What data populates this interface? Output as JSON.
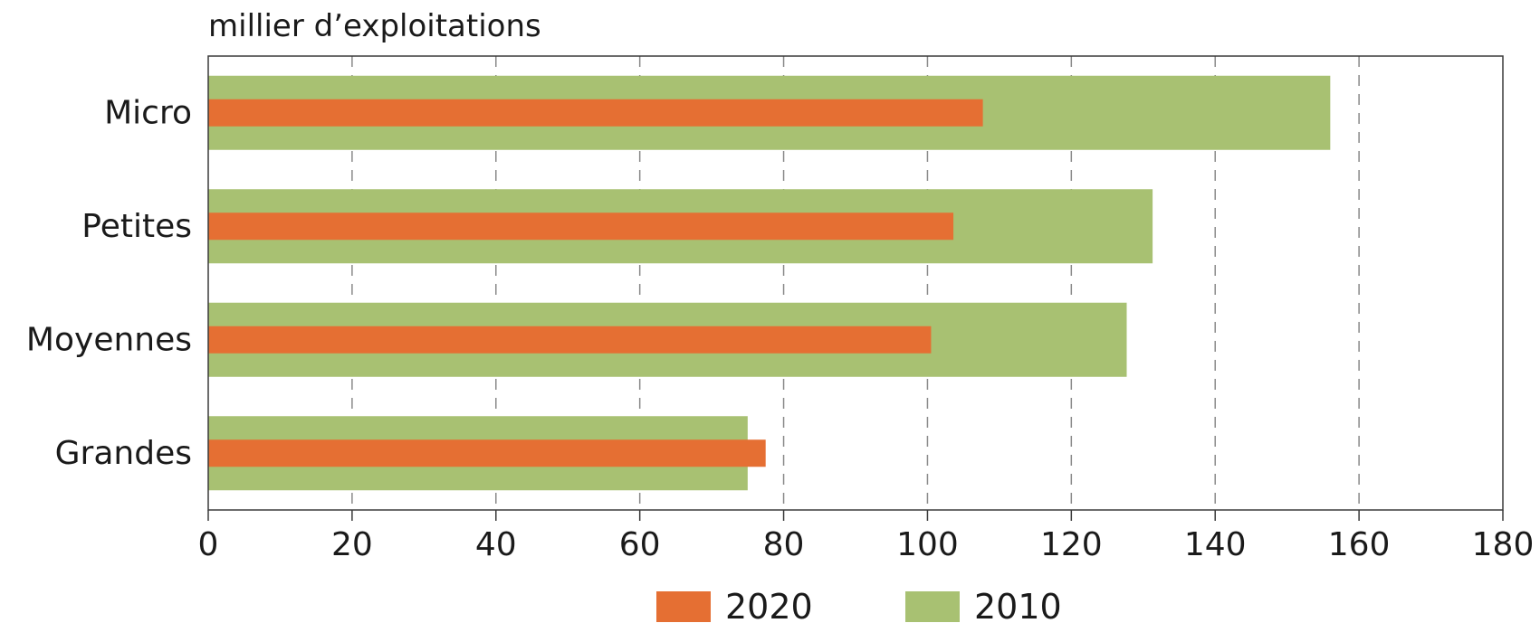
{
  "chart_data": {
    "type": "bar",
    "orientation": "horizontal",
    "unit_label": "millier d’exploitations",
    "categories": [
      "Micro",
      "Petites",
      "Moyennes",
      "Grandes"
    ],
    "series": [
      {
        "name": "2010",
        "values": [
          156,
          131.3,
          127.7,
          75
        ],
        "color": "#a8c172"
      },
      {
        "name": "2020",
        "values": [
          107.7,
          103.6,
          100.5,
          77.5
        ],
        "color": "#e56f33"
      }
    ],
    "xlim": [
      0,
      180
    ],
    "xticks": [
      0,
      20,
      40,
      60,
      80,
      100,
      120,
      140,
      160,
      180
    ],
    "grid": true,
    "legend_position": "bottom",
    "legend_order": [
      "2020",
      "2010"
    ]
  }
}
